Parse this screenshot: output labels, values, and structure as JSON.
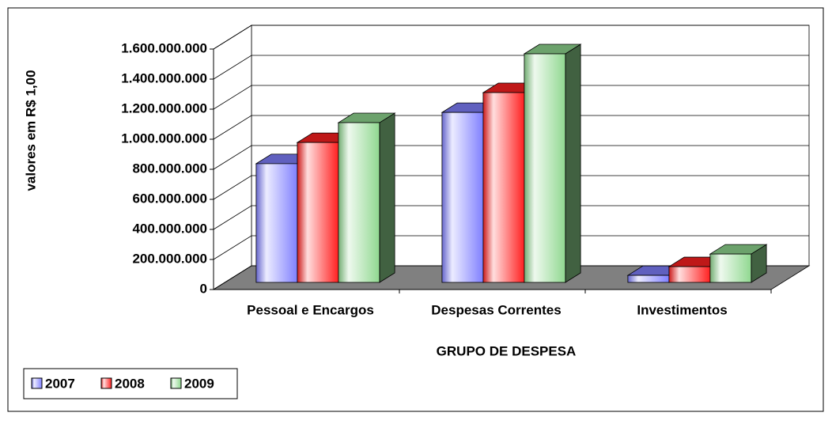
{
  "chart_data": {
    "type": "bar3d",
    "y_axis_label": "valores em R$ 1,00",
    "x_axis_label": "GRUPO DE DESPESA",
    "categories": [
      "Pessoal e Encargos",
      "Despesas Correntes",
      "Investimentos"
    ],
    "series": [
      {
        "name": "2007",
        "color": "#8080ff",
        "values": [
          790000000,
          1131000000,
          47000000
        ]
      },
      {
        "name": "2008",
        "color": "#ff2020",
        "values": [
          931000000,
          1263000000,
          105000000
        ]
      },
      {
        "name": "2009",
        "color": "#90d890",
        "values": [
          1063000000,
          1521000000,
          189000000
        ]
      }
    ],
    "ylim": [
      0,
      1600000000
    ],
    "yticks": [
      0,
      {
        "value": 200000000,
        "label": "200.000.000"
      },
      {
        "value": 400000000,
        "label": "400.000.000"
      },
      {
        "value": 600000000,
        "label": "600.000.000"
      },
      {
        "value": 800000000,
        "label": "800.000.000"
      },
      {
        "value": 1000000000,
        "label": "1.000.000.000"
      },
      {
        "value": 1200000000,
        "label": "1.200.000.000"
      },
      {
        "value": 1400000000,
        "label": "1.400.000.000"
      },
      {
        "value": 1600000000,
        "label": "1.600.000.000"
      }
    ],
    "grid": true,
    "legend": "bottom-left"
  }
}
